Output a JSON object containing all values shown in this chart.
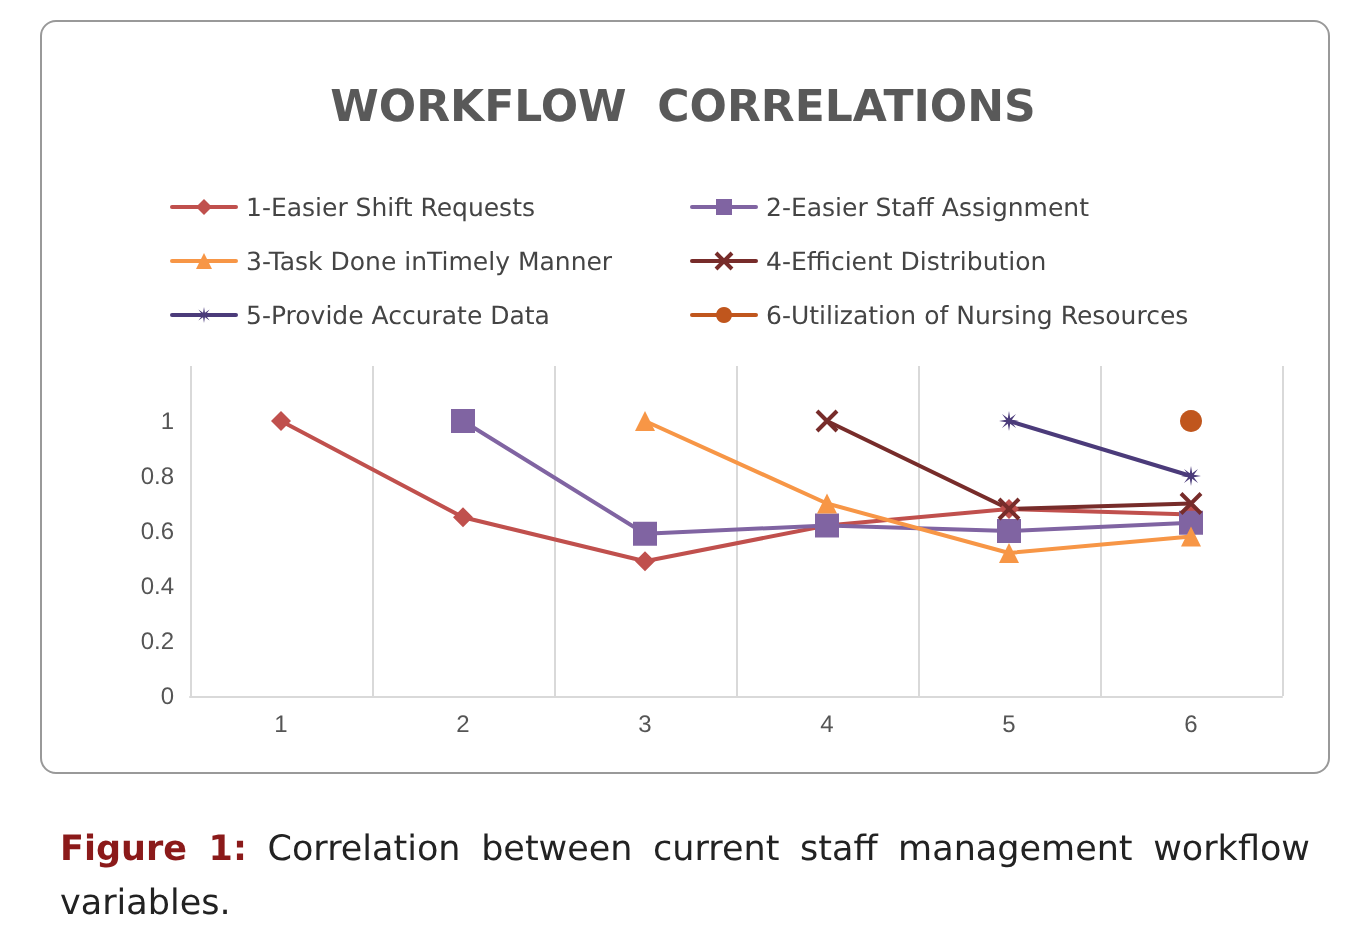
{
  "chart_data": {
    "type": "line",
    "title": "WORKFLOW  CORRELATIONS",
    "categories": [
      "1",
      "2",
      "3",
      "4",
      "5",
      "6"
    ],
    "series": [
      {
        "name": "1-Easier Shift Requests",
        "color": "#c0504d",
        "marker": "diamond",
        "values": [
          1,
          0.65,
          0.49,
          0.62,
          0.68,
          0.66
        ]
      },
      {
        "name": "2-Easier Staff Assignment",
        "color": "#8064a2",
        "marker": "square",
        "values": [
          null,
          1,
          0.59,
          0.62,
          0.6,
          0.63
        ]
      },
      {
        "name": "3-Task Done inTimely Manner",
        "color": "#f79646",
        "marker": "triangle",
        "values": [
          null,
          null,
          1,
          0.7,
          0.52,
          0.58
        ]
      },
      {
        "name": "4-Efficient Distribution",
        "color": "#772c2a",
        "marker": "cross",
        "values": [
          null,
          null,
          null,
          1,
          0.68,
          0.7
        ]
      },
      {
        "name": "5-Provide Accurate Data",
        "color": "#4b3b7a",
        "marker": "star",
        "values": [
          null,
          null,
          null,
          null,
          1,
          0.8
        ]
      },
      {
        "name": "6-Utilization of Nursing Resources",
        "color": "#c0561d",
        "marker": "circle",
        "values": [
          null,
          null,
          null,
          null,
          null,
          1
        ]
      }
    ],
    "ylim": [
      0,
      1.2
    ],
    "yticks": [
      0,
      0.2,
      0.4,
      0.6,
      0.8,
      1
    ],
    "grid": "x",
    "legend": "top",
    "annotations": [
      "Figure 1: Correlation between current staff management workflow variables."
    ]
  }
}
